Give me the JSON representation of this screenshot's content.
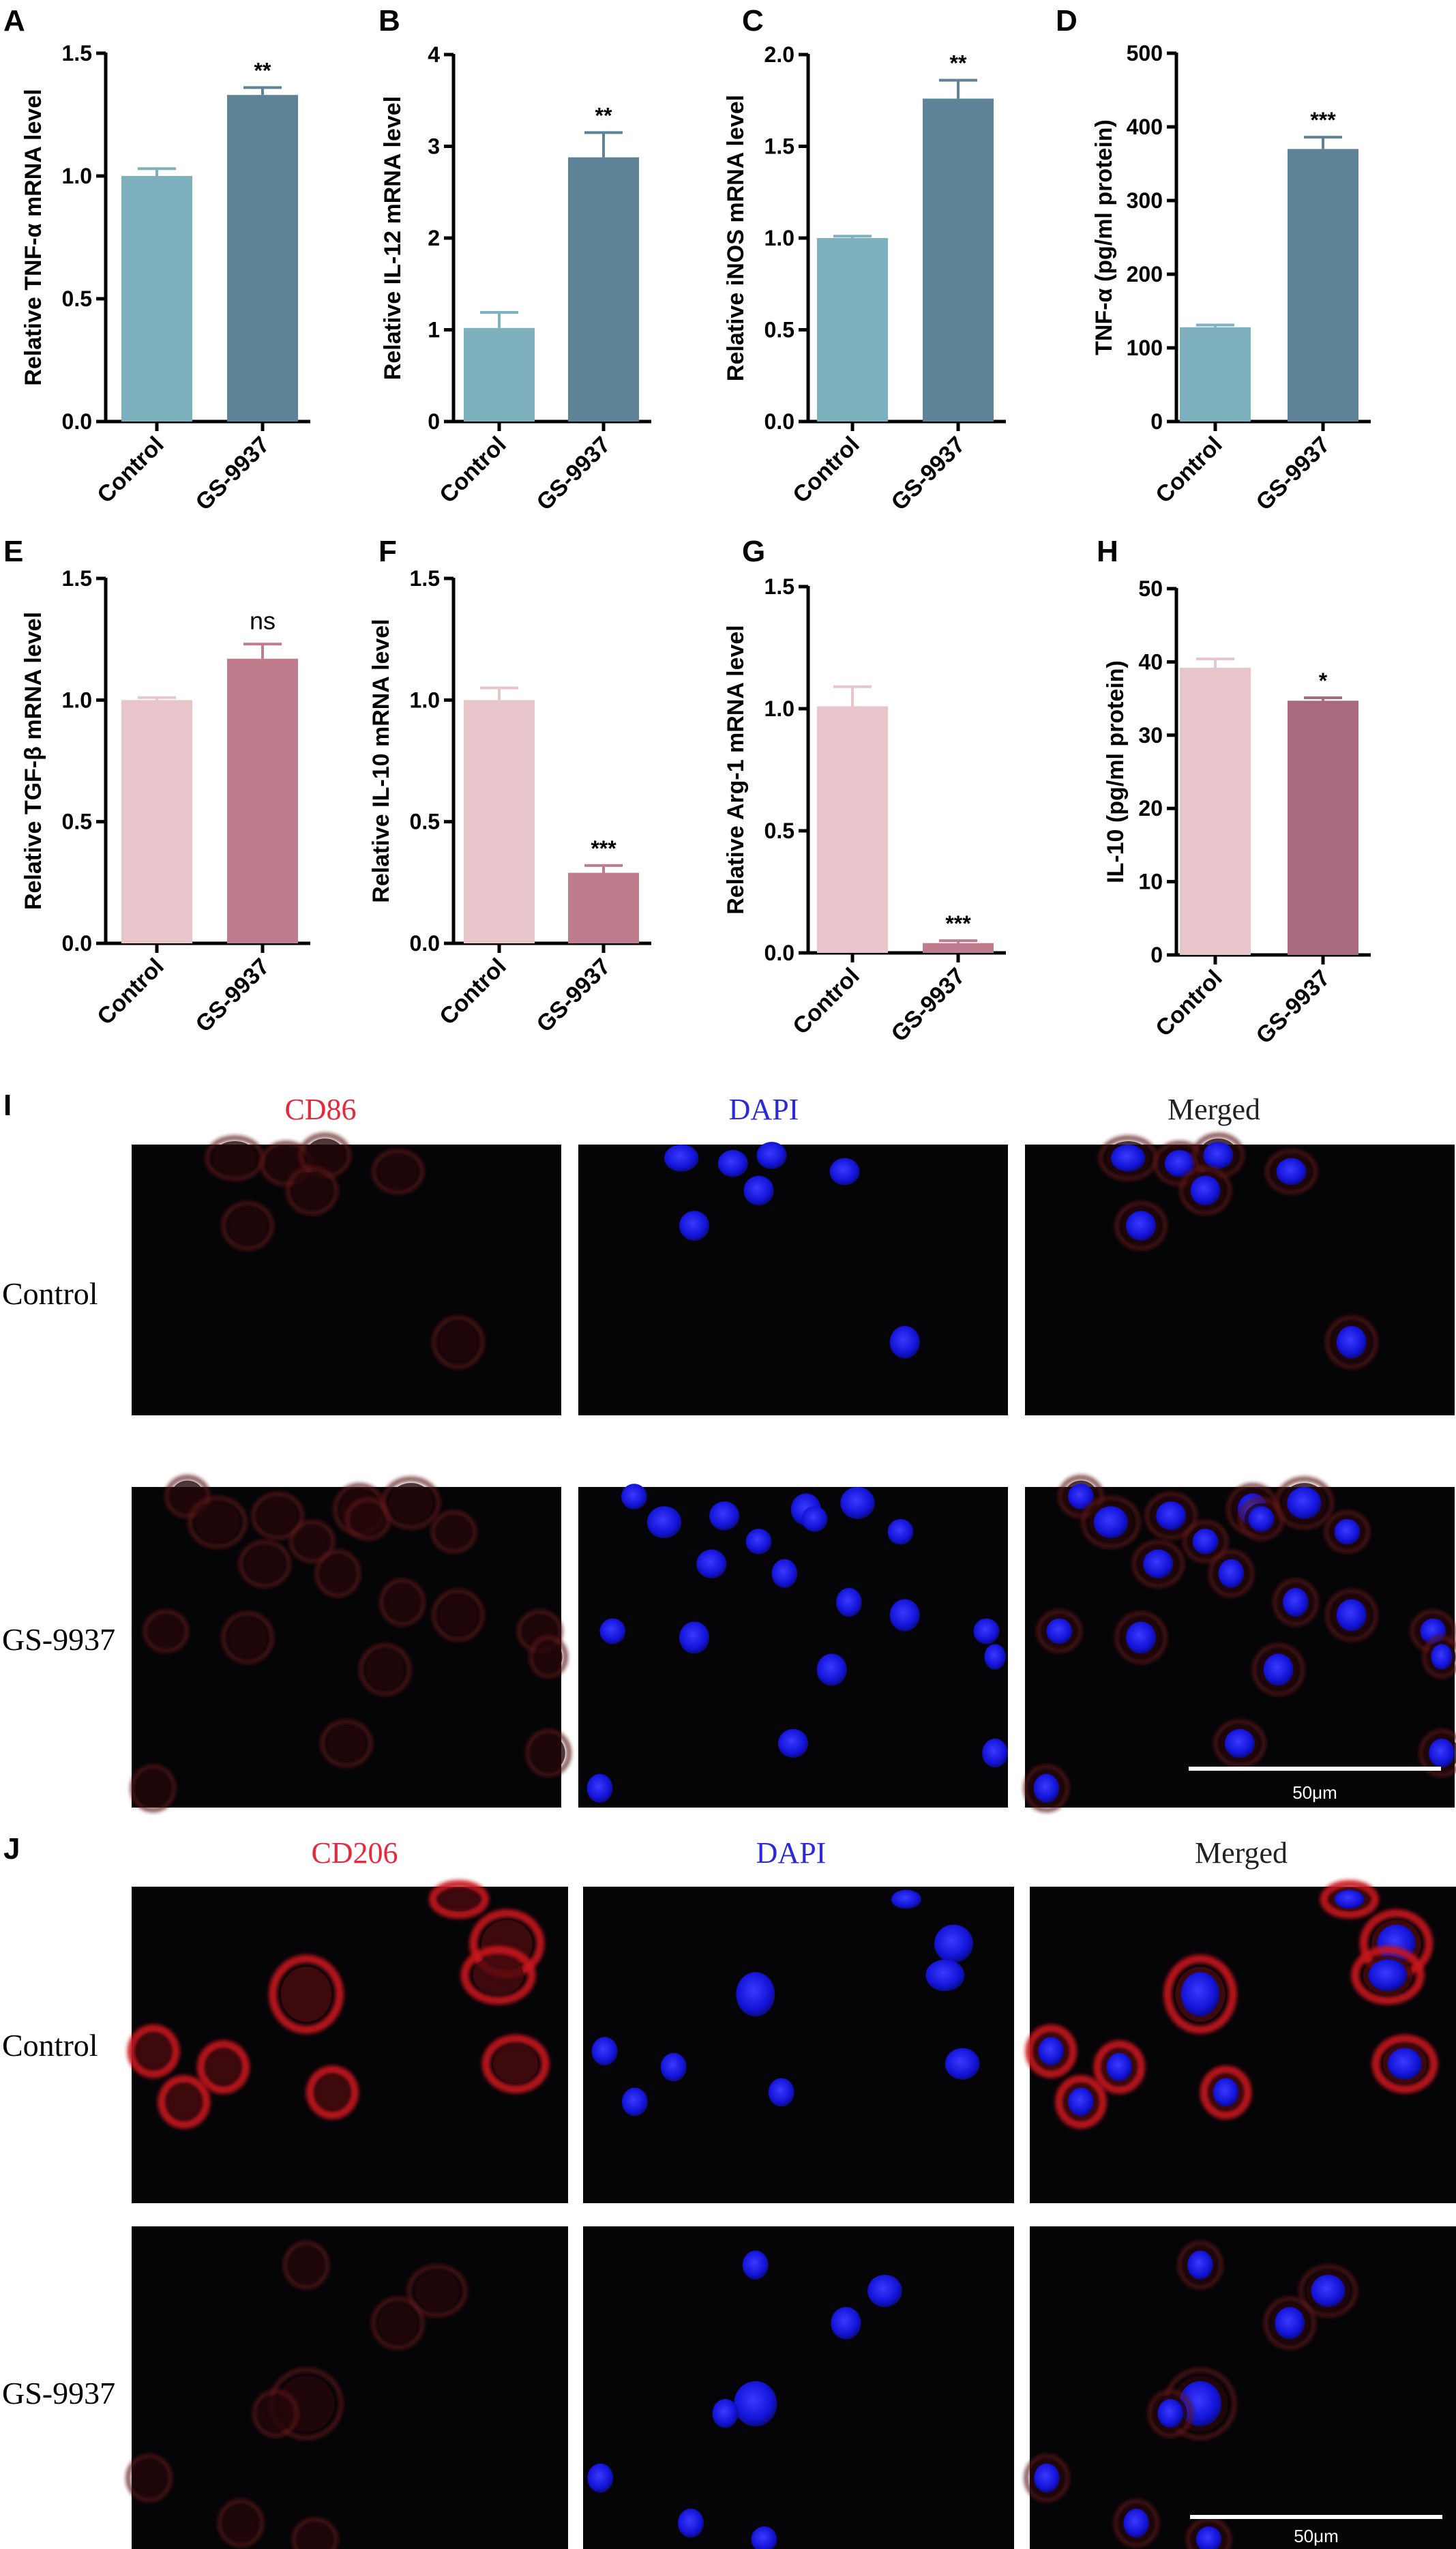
{
  "chart_data": [
    {
      "id": "A",
      "panel": "A",
      "type": "bar",
      "categories": [
        "Control",
        "GS-9937"
      ],
      "values": [
        1.0,
        1.33
      ],
      "errors": [
        0.03,
        0.03
      ],
      "significance": [
        "",
        "**"
      ],
      "ylabel": "Relative TNF-α  mRNA level",
      "ylim": [
        0,
        1.5
      ],
      "yticks": [
        "0.0",
        "0.5",
        "1.0",
        "1.5"
      ],
      "colors": [
        "#7fb0bd",
        "#5f8396"
      ]
    },
    {
      "id": "B",
      "panel": "B",
      "type": "bar",
      "categories": [
        "Control",
        "GS-9937"
      ],
      "values": [
        1.02,
        2.88
      ],
      "errors": [
        0.17,
        0.27
      ],
      "significance": [
        "",
        "**"
      ],
      "ylabel": "Relative IL-12 mRNA level",
      "ylim": [
        0,
        4
      ],
      "yticks": [
        "0",
        "1",
        "2",
        "3",
        "4"
      ],
      "colors": [
        "#7fb0bd",
        "#5f8396"
      ]
    },
    {
      "id": "C",
      "panel": "C",
      "type": "bar",
      "categories": [
        "Control",
        "GS-9937"
      ],
      "values": [
        1.0,
        1.76
      ],
      "errors": [
        0.01,
        0.1
      ],
      "significance": [
        "",
        "**"
      ],
      "ylabel": "Relative iNOS mRNA level",
      "ylim": [
        0,
        2.0
      ],
      "yticks": [
        "0.0",
        "0.5",
        "1.0",
        "1.5",
        "2.0"
      ],
      "colors": [
        "#7fb0bd",
        "#5f8396"
      ]
    },
    {
      "id": "D",
      "panel": "D",
      "type": "bar",
      "categories": [
        "Control",
        "GS-9937"
      ],
      "values": [
        128,
        370
      ],
      "errors": [
        3,
        16
      ],
      "significance": [
        "",
        "***"
      ],
      "ylabel": "TNF-α (pg/ml protein)",
      "ylim": [
        0,
        500
      ],
      "yticks": [
        "0",
        "100",
        "200",
        "300",
        "400",
        "500"
      ],
      "colors": [
        "#7fb0bd",
        "#5f8396"
      ]
    },
    {
      "id": "E",
      "panel": "E",
      "type": "bar",
      "categories": [
        "Control",
        "GS-9937"
      ],
      "values": [
        1.0,
        1.17
      ],
      "errors": [
        0.01,
        0.06
      ],
      "significance": [
        "",
        "ns"
      ],
      "ylabel": "Relative TGF-β mRNA level",
      "ylim": [
        0,
        1.5
      ],
      "yticks": [
        "0.0",
        "0.5",
        "1.0",
        "1.5"
      ],
      "colors": [
        "#e8c4cb",
        "#c07c8f"
      ]
    },
    {
      "id": "F",
      "panel": "F",
      "type": "bar",
      "categories": [
        "Control",
        "GS-9937"
      ],
      "values": [
        1.0,
        0.29
      ],
      "errors": [
        0.05,
        0.03
      ],
      "significance": [
        "",
        "***"
      ],
      "ylabel": "Relative IL-10 mRNA level",
      "ylim": [
        0,
        1.5
      ],
      "yticks": [
        "0.0",
        "0.5",
        "1.0",
        "1.5"
      ],
      "colors": [
        "#e8c4cb",
        "#c07c8f"
      ]
    },
    {
      "id": "G",
      "panel": "G",
      "type": "bar",
      "categories": [
        "Control",
        "GS-9937"
      ],
      "values": [
        1.01,
        0.04
      ],
      "errors": [
        0.08,
        0.01
      ],
      "significance": [
        "",
        "***"
      ],
      "ylabel": "Relative Arg-1 mRNA level",
      "ylim": [
        0,
        1.5
      ],
      "yticks": [
        "0.0",
        "0.5",
        "1.0",
        "1.5"
      ],
      "colors": [
        "#e8c4cb",
        "#c07c8f"
      ]
    },
    {
      "id": "H",
      "panel": "H",
      "type": "bar",
      "categories": [
        "Control",
        "GS-9937"
      ],
      "values": [
        39.2,
        34.7
      ],
      "errors": [
        1.2,
        0.4
      ],
      "significance": [
        "",
        "*"
      ],
      "ylabel": "IL-10 (pg/ml protein)",
      "ylim": [
        0,
        50
      ],
      "yticks": [
        "0",
        "10",
        "20",
        "30",
        "40",
        "50"
      ],
      "colors": [
        "#e8c4cb",
        "#a96a80"
      ]
    }
  ],
  "micrographs": [
    {
      "panel": "I",
      "columns": [
        {
          "label": "CD86",
          "color": "#e8283c"
        },
        {
          "label": "DAPI",
          "color": "#2a2ad8"
        },
        {
          "label": "Merged",
          "color": "#222222"
        }
      ],
      "rows": [
        "Control",
        "GS-9937"
      ],
      "scale_bar": "50μm"
    },
    {
      "panel": "J",
      "columns": [
        {
          "label": "CD206",
          "color": "#e8283c"
        },
        {
          "label": "DAPI",
          "color": "#2a2ad8"
        },
        {
          "label": "Merged",
          "color": "#222222"
        }
      ],
      "rows": [
        "Control",
        "GS-9937"
      ],
      "scale_bar": "50μm"
    }
  ],
  "colors": {
    "red_stain": "#d21e1e",
    "blue_stain": "#1c1ce6",
    "image_bg": "#050508"
  }
}
